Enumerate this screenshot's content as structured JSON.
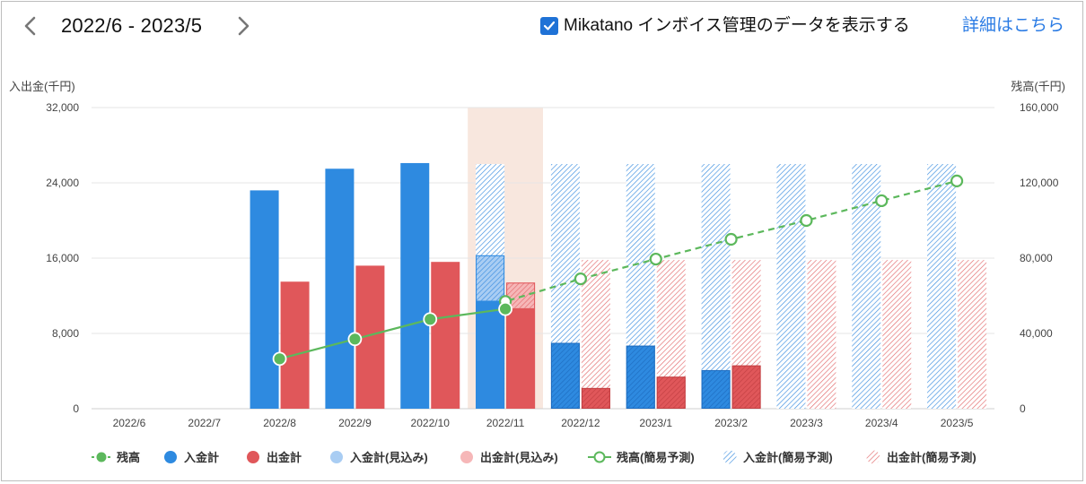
{
  "header": {
    "period": "2022/6 - 2023/5",
    "toggle_label": "Mikatano インボイス管理のデータを表示する",
    "toggle_checked": true,
    "detail_link": "詳細はこちら"
  },
  "chart_data": {
    "type": "bar",
    "categories": [
      "2022/6",
      "2022/7",
      "2022/8",
      "2022/9",
      "2022/10",
      "2022/11",
      "2022/12",
      "2023/1",
      "2023/2",
      "2023/3",
      "2023/4",
      "2023/5"
    ],
    "ylabel": "入出金(千円)",
    "y2label": "残高(千円)",
    "ylim": [
      0,
      32000
    ],
    "y2lim": [
      0,
      160000
    ],
    "yticks": [
      "0",
      "8,000",
      "16,000",
      "24,000",
      "32,000"
    ],
    "y2ticks": [
      "0",
      "40,000",
      "80,000",
      "120,000",
      "160,000"
    ],
    "highlight_category": "2022/11",
    "grid": true,
    "legend_position": "bottom",
    "series": [
      {
        "name": "残高",
        "axis": "right",
        "kind": "line",
        "color": "#5cb85c",
        "values": [
          null,
          null,
          26500,
          37000,
          47500,
          53000,
          null,
          null,
          null,
          null,
          null,
          null
        ]
      },
      {
        "name": "入金計",
        "axis": "left",
        "kind": "bar",
        "color": "#2e8ae0",
        "values": [
          0,
          0,
          23200,
          25500,
          26100,
          11500,
          7000,
          6700,
          4100,
          0,
          0,
          0
        ]
      },
      {
        "name": "出金計",
        "axis": "left",
        "kind": "bar",
        "color": "#e0575a",
        "values": [
          0,
          0,
          13500,
          15200,
          15600,
          10700,
          2200,
          3400,
          4600,
          0,
          0,
          0
        ]
      },
      {
        "name": "入金計(見込み)",
        "axis": "left",
        "kind": "bar",
        "color": "#a9cdf3",
        "values": [
          0,
          0,
          0,
          0,
          0,
          4800,
          0,
          0,
          0,
          0,
          0,
          0
        ]
      },
      {
        "name": "出金計(見込み)",
        "axis": "left",
        "kind": "bar",
        "color": "#f6b7b8",
        "values": [
          0,
          0,
          0,
          0,
          0,
          2700,
          0,
          0,
          0,
          0,
          0,
          0
        ]
      },
      {
        "name": "残高(簡易予測)",
        "axis": "right",
        "kind": "line",
        "color": "#5cb85c",
        "values": [
          null,
          null,
          null,
          null,
          null,
          57000,
          69000,
          79500,
          90000,
          100000,
          110500,
          121000
        ]
      },
      {
        "name": "入金計(簡易予測)",
        "axis": "left",
        "kind": "bar",
        "color": "#2e8ae0",
        "values": [
          0,
          0,
          0,
          0,
          0,
          26000,
          26000,
          26000,
          26000,
          26000,
          26000,
          26000
        ]
      },
      {
        "name": "出金計(簡易予測)",
        "axis": "left",
        "kind": "bar",
        "color": "#e0575a",
        "values": [
          0,
          0,
          0,
          0,
          0,
          15800,
          15800,
          15800,
          15800,
          15800,
          15800,
          15800
        ]
      }
    ]
  }
}
